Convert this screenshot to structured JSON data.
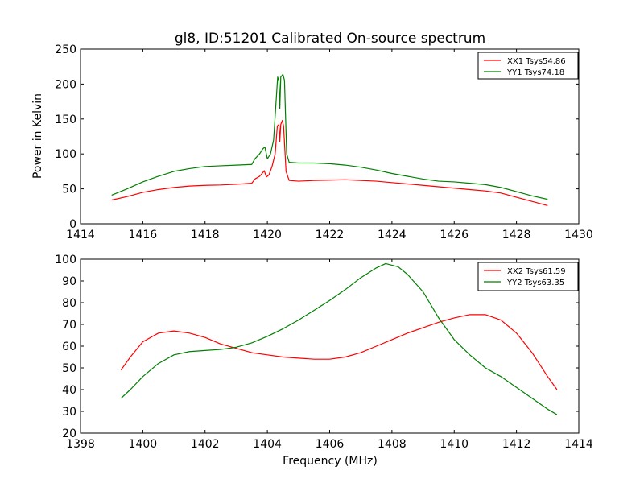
{
  "chart_data": [
    {
      "type": "line",
      "title": "gl8, ID:51201 Calibrated On-source spectrum",
      "xlabel": "",
      "ylabel": "Power in Kelvin",
      "xlim": [
        1414,
        1430
      ],
      "ylim": [
        0,
        250
      ],
      "xticks": [
        1414,
        1416,
        1418,
        1420,
        1422,
        1424,
        1426,
        1428,
        1430
      ],
      "yticks": [
        0,
        50,
        100,
        150,
        200,
        250
      ],
      "grid": false,
      "legend": "top-right",
      "series": [
        {
          "name": "XX1 Tsys54.86",
          "color": "#ff0000",
          "points": [
            [
              1415.0,
              34
            ],
            [
              1415.5,
              39
            ],
            [
              1416.0,
              45
            ],
            [
              1416.5,
              49
            ],
            [
              1417.0,
              52
            ],
            [
              1417.5,
              54
            ],
            [
              1418.0,
              55
            ],
            [
              1418.5,
              55.5
            ],
            [
              1419.0,
              56.5
            ],
            [
              1419.5,
              58
            ],
            [
              1419.6,
              64
            ],
            [
              1419.75,
              68
            ],
            [
              1419.85,
              73
            ],
            [
              1419.9,
              76
            ],
            [
              1419.97,
              67
            ],
            [
              1420.05,
              70
            ],
            [
              1420.15,
              82
            ],
            [
              1420.25,
              100
            ],
            [
              1420.32,
              140
            ],
            [
              1420.37,
              142
            ],
            [
              1420.4,
              118
            ],
            [
              1420.43,
              142
            ],
            [
              1420.48,
              148
            ],
            [
              1420.52,
              140
            ],
            [
              1420.6,
              75
            ],
            [
              1420.7,
              62
            ],
            [
              1421.0,
              61
            ],
            [
              1421.5,
              62
            ],
            [
              1422.0,
              62.5
            ],
            [
              1422.5,
              63
            ],
            [
              1423.0,
              62
            ],
            [
              1423.5,
              61
            ],
            [
              1424.0,
              59
            ],
            [
              1424.5,
              57
            ],
            [
              1425.0,
              55
            ],
            [
              1425.5,
              53
            ],
            [
              1426.0,
              51
            ],
            [
              1426.5,
              49
            ],
            [
              1427.0,
              47
            ],
            [
              1427.5,
              44
            ],
            [
              1428.0,
              38
            ],
            [
              1428.5,
              32
            ],
            [
              1429.0,
              26
            ]
          ]
        },
        {
          "name": "YY1 Tsys74.18",
          "color": "#008000",
          "points": [
            [
              1415.0,
              41
            ],
            [
              1415.5,
              50
            ],
            [
              1416.0,
              60
            ],
            [
              1416.5,
              68
            ],
            [
              1417.0,
              75
            ],
            [
              1417.5,
              79
            ],
            [
              1418.0,
              82
            ],
            [
              1418.5,
              83
            ],
            [
              1419.0,
              84
            ],
            [
              1419.5,
              85
            ],
            [
              1419.6,
              93
            ],
            [
              1419.75,
              100
            ],
            [
              1419.85,
              107
            ],
            [
              1419.92,
              110
            ],
            [
              1420.0,
              93
            ],
            [
              1420.1,
              100
            ],
            [
              1420.2,
              120
            ],
            [
              1420.28,
              175
            ],
            [
              1420.33,
              210
            ],
            [
              1420.37,
              205
            ],
            [
              1420.4,
              165
            ],
            [
              1420.43,
              210
            ],
            [
              1420.5,
              214
            ],
            [
              1420.55,
              205
            ],
            [
              1420.62,
              100
            ],
            [
              1420.7,
              88
            ],
            [
              1421.0,
              87
            ],
            [
              1421.5,
              87
            ],
            [
              1422.0,
              86
            ],
            [
              1422.5,
              84
            ],
            [
              1423.0,
              81
            ],
            [
              1423.5,
              77
            ],
            [
              1424.0,
              72
            ],
            [
              1424.5,
              68
            ],
            [
              1425.0,
              64
            ],
            [
              1425.5,
              61
            ],
            [
              1426.0,
              60
            ],
            [
              1426.5,
              58
            ],
            [
              1427.0,
              56
            ],
            [
              1427.5,
              52
            ],
            [
              1428.0,
              46
            ],
            [
              1428.5,
              40
            ],
            [
              1429.0,
              35
            ]
          ]
        }
      ]
    },
    {
      "type": "line",
      "title": "",
      "xlabel": "Frequency (MHz)",
      "ylabel": "",
      "xlim": [
        1398,
        1414
      ],
      "ylim": [
        20,
        100
      ],
      "xticks": [
        1398,
        1400,
        1402,
        1404,
        1406,
        1408,
        1410,
        1412,
        1414
      ],
      "yticks": [
        20,
        30,
        40,
        50,
        60,
        70,
        80,
        90,
        100
      ],
      "grid": false,
      "legend": "top-right",
      "series": [
        {
          "name": "XX2 Tsys61.59",
          "color": "#ff0000",
          "points": [
            [
              1399.3,
              49
            ],
            [
              1399.6,
              55
            ],
            [
              1400.0,
              62
            ],
            [
              1400.5,
              66
            ],
            [
              1401.0,
              67
            ],
            [
              1401.5,
              66
            ],
            [
              1402.0,
              64
            ],
            [
              1402.5,
              61
            ],
            [
              1403.0,
              59
            ],
            [
              1403.5,
              57
            ],
            [
              1404.0,
              56
            ],
            [
              1404.5,
              55
            ],
            [
              1405.0,
              54.5
            ],
            [
              1405.5,
              54
            ],
            [
              1406.0,
              54
            ],
            [
              1406.5,
              55
            ],
            [
              1407.0,
              57
            ],
            [
              1407.5,
              60
            ],
            [
              1408.0,
              63
            ],
            [
              1408.5,
              66
            ],
            [
              1409.0,
              68.5
            ],
            [
              1409.5,
              71
            ],
            [
              1410.0,
              73
            ],
            [
              1410.5,
              74.5
            ],
            [
              1411.0,
              74.5
            ],
            [
              1411.5,
              72
            ],
            [
              1412.0,
              66
            ],
            [
              1412.5,
              57
            ],
            [
              1413.0,
              46
            ],
            [
              1413.3,
              40
            ]
          ]
        },
        {
          "name": "YY2 Tsys63.35",
          "color": "#008000",
          "points": [
            [
              1399.3,
              36
            ],
            [
              1399.6,
              40
            ],
            [
              1400.0,
              46
            ],
            [
              1400.5,
              52
            ],
            [
              1401.0,
              56
            ],
            [
              1401.5,
              57.5
            ],
            [
              1402.0,
              58
            ],
            [
              1402.5,
              58.5
            ],
            [
              1403.0,
              59.5
            ],
            [
              1403.5,
              61.5
            ],
            [
              1404.0,
              64.5
            ],
            [
              1404.5,
              68
            ],
            [
              1405.0,
              72
            ],
            [
              1405.5,
              76.5
            ],
            [
              1406.0,
              81
            ],
            [
              1406.5,
              86
            ],
            [
              1407.0,
              91.5
            ],
            [
              1407.5,
              96
            ],
            [
              1407.8,
              98
            ],
            [
              1408.2,
              96.5
            ],
            [
              1408.5,
              93
            ],
            [
              1409.0,
              85
            ],
            [
              1409.5,
              73
            ],
            [
              1410.0,
              63
            ],
            [
              1410.5,
              56
            ],
            [
              1411.0,
              50
            ],
            [
              1411.5,
              46
            ],
            [
              1412.0,
              41
            ],
            [
              1412.5,
              36
            ],
            [
              1413.0,
              31
            ],
            [
              1413.3,
              28.5
            ]
          ]
        }
      ]
    }
  ]
}
